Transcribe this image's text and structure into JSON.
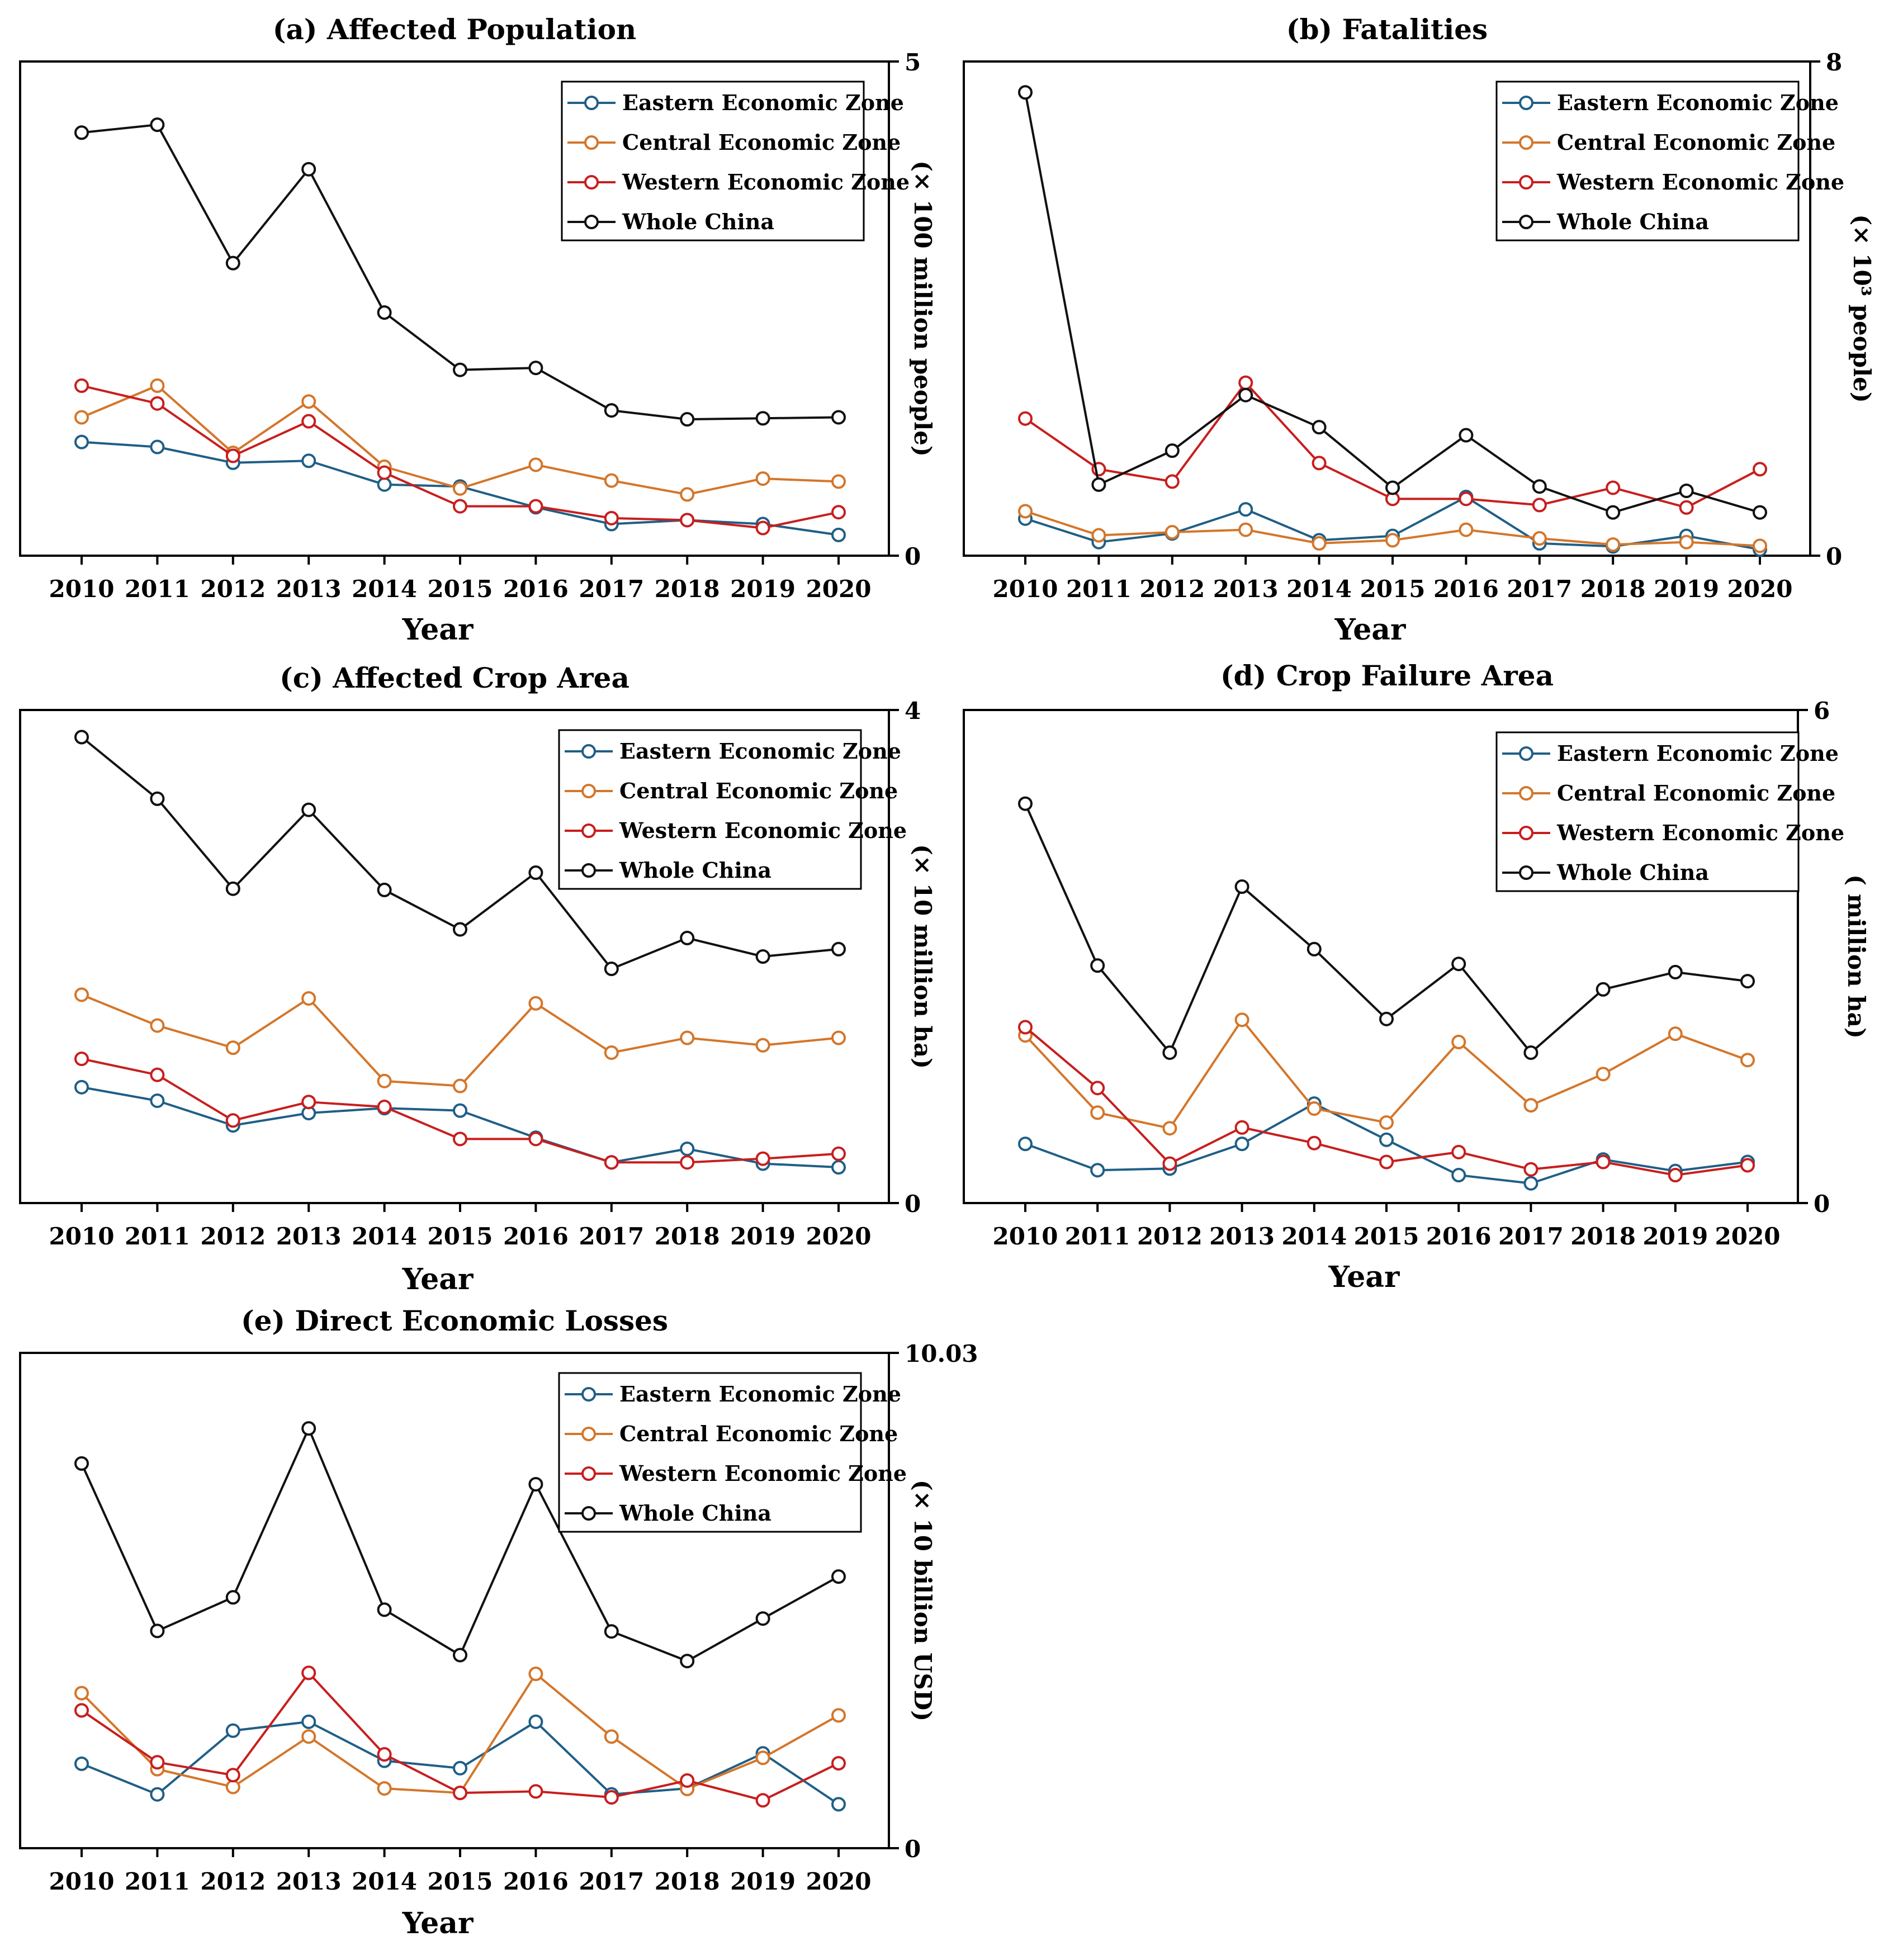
{
  "colors": {
    "Eastern Economic Zone": "#1f5f86",
    "Central Economic Zone": "#d4762a",
    "Western Economic Zone": "#c81e1e",
    "Whole China": "#111111"
  },
  "chart_data": [
    {
      "type": "line",
      "title": "(a) Affected Population",
      "xlabel": "Year",
      "ylabel": "(× 100 million people)",
      "ylim": [
        0,
        5
      ],
      "yticks": [
        "5",
        "0"
      ],
      "legend": "top-right",
      "categories": [
        "2010",
        "2011",
        "2012",
        "2013",
        "2014",
        "2015",
        "2016",
        "2017",
        "2018",
        "2019",
        "2020"
      ],
      "series": [
        {
          "name": "Eastern Economic Zone",
          "values": [
            1.15,
            1.1,
            0.94,
            0.96,
            0.72,
            0.7,
            0.49,
            0.32,
            0.36,
            0.32,
            0.21
          ]
        },
        {
          "name": "Central Economic Zone",
          "values": [
            1.4,
            1.72,
            1.04,
            1.56,
            0.9,
            0.68,
            0.92,
            0.76,
            0.62,
            0.78,
            0.75
          ]
        },
        {
          "name": "Western Economic Zone",
          "values": [
            1.72,
            1.54,
            1.01,
            1.36,
            0.84,
            0.5,
            0.5,
            0.38,
            0.36,
            0.28,
            0.44
          ]
        },
        {
          "name": "Whole China",
          "values": [
            4.28,
            4.36,
            2.96,
            3.91,
            2.46,
            1.88,
            1.9,
            1.47,
            1.38,
            1.39,
            1.4
          ]
        }
      ]
    },
    {
      "type": "line",
      "title": "(b) Fatalities",
      "xlabel": "Year",
      "ylabel": "(× 10³ people)",
      "ylim": [
        0,
        8
      ],
      "yticks": [
        "8",
        "0"
      ],
      "legend": "top-right",
      "categories": [
        "2010",
        "2011",
        "2012",
        "2013",
        "2014",
        "2015",
        "2016",
        "2017",
        "2018",
        "2019",
        "2020"
      ],
      "series": [
        {
          "name": "Eastern Economic Zone",
          "values": [
            0.6,
            0.22,
            0.36,
            0.75,
            0.25,
            0.32,
            0.95,
            0.2,
            0.15,
            0.32,
            0.1
          ]
        },
        {
          "name": "Central Economic Zone",
          "values": [
            0.72,
            0.33,
            0.38,
            0.42,
            0.2,
            0.25,
            0.42,
            0.28,
            0.18,
            0.22,
            0.16
          ]
        },
        {
          "name": "Western Economic Zone",
          "values": [
            2.22,
            1.4,
            1.2,
            2.8,
            1.5,
            0.92,
            0.92,
            0.82,
            1.1,
            0.78,
            1.4
          ]
        },
        {
          "name": "Whole China",
          "values": [
            7.5,
            1.15,
            1.7,
            2.6,
            2.08,
            1.1,
            1.95,
            1.12,
            0.7,
            1.05,
            0.7
          ]
        }
      ]
    },
    {
      "type": "line",
      "title": "(c) Affected Crop Area",
      "xlabel": "Year",
      "ylabel": "(× 10 million ha)",
      "ylim": [
        0,
        4
      ],
      "yticks": [
        "4",
        "0"
      ],
      "legend": "top-right",
      "categories": [
        "2010",
        "2011",
        "2012",
        "2013",
        "2014",
        "2015",
        "2016",
        "2017",
        "2018",
        "2019",
        "2020"
      ],
      "series": [
        {
          "name": "Eastern Economic Zone",
          "values": [
            0.94,
            0.83,
            0.63,
            0.73,
            0.77,
            0.75,
            0.53,
            0.33,
            0.44,
            0.32,
            0.29
          ]
        },
        {
          "name": "Central Economic Zone",
          "values": [
            1.69,
            1.44,
            1.26,
            1.66,
            0.99,
            0.95,
            1.62,
            1.22,
            1.34,
            1.28,
            1.34
          ]
        },
        {
          "name": "Western Economic Zone",
          "values": [
            1.17,
            1.04,
            0.67,
            0.82,
            0.78,
            0.52,
            0.52,
            0.33,
            0.33,
            0.36,
            0.4
          ]
        },
        {
          "name": "Whole China",
          "values": [
            3.78,
            3.28,
            2.55,
            3.19,
            2.54,
            2.22,
            2.68,
            1.9,
            2.15,
            2.0,
            2.06
          ]
        }
      ]
    },
    {
      "type": "line",
      "title": "(d) Crop Failure Area",
      "xlabel": "Year",
      "ylabel": "( million ha)",
      "ylim": [
        0,
        6
      ],
      "yticks": [
        "6",
        "0"
      ],
      "legend": "top-right",
      "categories": [
        "2010",
        "2011",
        "2012",
        "2013",
        "2014",
        "2015",
        "2016",
        "2017",
        "2018",
        "2019",
        "2020"
      ],
      "series": [
        {
          "name": "Eastern Economic Zone",
          "values": [
            0.72,
            0.4,
            0.42,
            0.72,
            1.21,
            0.77,
            0.34,
            0.24,
            0.53,
            0.39,
            0.5
          ]
        },
        {
          "name": "Central Economic Zone",
          "values": [
            2.04,
            1.1,
            0.91,
            2.23,
            1.15,
            0.98,
            1.96,
            1.19,
            1.57,
            2.06,
            1.74
          ]
        },
        {
          "name": "Western Economic Zone",
          "values": [
            2.14,
            1.4,
            0.48,
            0.92,
            0.73,
            0.5,
            0.62,
            0.41,
            0.5,
            0.34,
            0.46
          ]
        },
        {
          "name": "Whole China",
          "values": [
            4.86,
            2.89,
            1.83,
            3.85,
            3.09,
            2.24,
            2.91,
            1.83,
            2.6,
            2.81,
            2.7
          ]
        }
      ]
    },
    {
      "type": "line",
      "title": "(e) Direct Economic Losses",
      "xlabel": "Year",
      "ylabel": "(× 10 billion USD)",
      "ylim": [
        0,
        10.03
      ],
      "yticks": [
        "10.03",
        "0"
      ],
      "legend": "top-right",
      "categories": [
        "2010",
        "2011",
        "2012",
        "2013",
        "2014",
        "2015",
        "2016",
        "2017",
        "2018",
        "2019",
        "2020"
      ],
      "series": [
        {
          "name": "Eastern Economic Zone",
          "values": [
            1.71,
            1.09,
            2.38,
            2.56,
            1.77,
            1.62,
            2.56,
            1.09,
            1.21,
            1.92,
            0.89
          ]
        },
        {
          "name": "Central Economic Zone",
          "values": [
            3.14,
            1.6,
            1.24,
            2.26,
            1.21,
            1.12,
            3.53,
            2.26,
            1.2,
            1.83,
            2.69
          ]
        },
        {
          "name": "Western Economic Zone",
          "values": [
            2.79,
            1.74,
            1.48,
            3.55,
            1.9,
            1.12,
            1.15,
            1.03,
            1.37,
            0.97,
            1.72
          ]
        },
        {
          "name": "Whole China",
          "values": [
            7.79,
            4.4,
            5.08,
            8.5,
            4.83,
            3.91,
            7.37,
            4.39,
            3.79,
            4.65,
            5.5
          ]
        }
      ]
    }
  ]
}
